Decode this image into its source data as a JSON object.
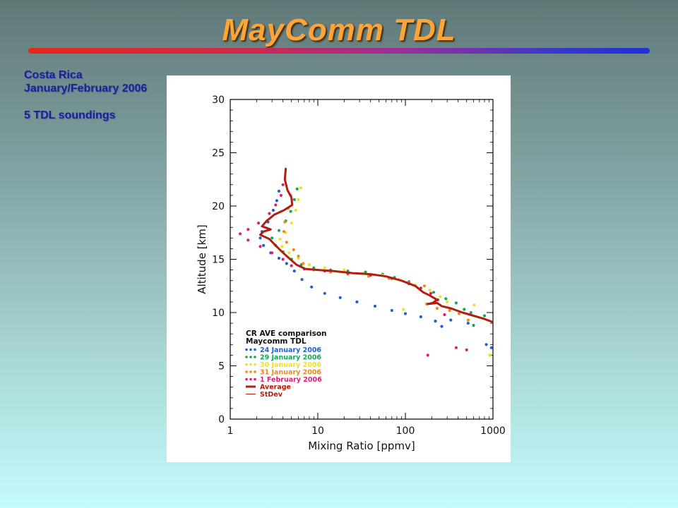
{
  "slide": {
    "title": "MayComm TDL",
    "side_lines": [
      "Costa Rica",
      "January/February 2006",
      "5 TDL soundings"
    ],
    "title_color": "#ffa436",
    "text_color": "#1b1f9e"
  },
  "chart_data": {
    "type": "scatter",
    "xlabel": "Mixing Ratio [ppmv]",
    "ylabel": "Altitude [km]",
    "x_scale": "log",
    "xlim": [
      1,
      1000
    ],
    "ylim": [
      0,
      30
    ],
    "x_ticks": [
      1,
      10,
      100,
      1000
    ],
    "y_ticks": [
      0,
      5,
      10,
      15,
      20,
      25,
      30
    ],
    "grid": false,
    "legend_position": "bottom-left",
    "legend_title": [
      "CR AVE comparison",
      "Maycomm TDL"
    ],
    "series": [
      {
        "name": "24 January 2006",
        "color": "#1f5fd0",
        "style": "dots",
        "points": [
          [
            3.6,
            21.4
          ],
          [
            3.4,
            20.5
          ],
          [
            3.1,
            19.6
          ],
          [
            2.7,
            18.5
          ],
          [
            2.3,
            17.6
          ],
          [
            2.2,
            17.0
          ],
          [
            2.4,
            16.3
          ],
          [
            2.9,
            15.6
          ],
          [
            3.6,
            15.1
          ],
          [
            4.4,
            14.6
          ],
          [
            5.4,
            13.9
          ],
          [
            6.6,
            13.1
          ],
          [
            8.5,
            12.4
          ],
          [
            12,
            11.8
          ],
          [
            18,
            11.4
          ],
          [
            28,
            11.0
          ],
          [
            45,
            10.6
          ],
          [
            70,
            10.2
          ],
          [
            100,
            9.9
          ],
          [
            150,
            9.6
          ],
          [
            220,
            9.2
          ],
          [
            260,
            8.7
          ],
          [
            330,
            9.3
          ],
          [
            520,
            9.0
          ],
          [
            840,
            7.0
          ],
          [
            960,
            6.7
          ]
        ]
      },
      {
        "name": "29 January 2006",
        "color": "#14a75a",
        "style": "dots",
        "points": [
          [
            5.8,
            21.6
          ],
          [
            5.4,
            20.6
          ],
          [
            4.9,
            19.5
          ],
          [
            4.3,
            18.6
          ],
          [
            3.6,
            17.7
          ],
          [
            3.0,
            17.0
          ],
          [
            3.3,
            16.3
          ],
          [
            4.0,
            15.7
          ],
          [
            5.0,
            15.0
          ],
          [
            6.5,
            14.5
          ],
          [
            9,
            14.2
          ],
          [
            14,
            14.0
          ],
          [
            22,
            13.9
          ],
          [
            35,
            13.8
          ],
          [
            55,
            13.6
          ],
          [
            75,
            13.3
          ],
          [
            110,
            12.9
          ],
          [
            150,
            12.3
          ],
          [
            210,
            11.9
          ],
          [
            290,
            11.3
          ],
          [
            380,
            10.9
          ],
          [
            470,
            10.3
          ],
          [
            560,
            10.0
          ],
          [
            600,
            8.8
          ],
          [
            800,
            9.7
          ]
        ]
      },
      {
        "name": "30 January 2006",
        "color": "#ebe31e",
        "style": "dots",
        "points": [
          [
            6.4,
            21.7
          ],
          [
            6.0,
            20.6
          ],
          [
            5.6,
            19.6
          ],
          [
            5.0,
            18.4
          ],
          [
            4.3,
            17.5
          ],
          [
            3.7,
            16.9
          ],
          [
            3.9,
            16.2
          ],
          [
            4.7,
            15.6
          ],
          [
            6.0,
            15.1
          ],
          [
            8,
            14.5
          ],
          [
            12,
            14.2
          ],
          [
            20,
            14.0
          ],
          [
            33,
            13.7
          ],
          [
            55,
            13.5
          ],
          [
            85,
            13.1
          ],
          [
            130,
            12.6
          ],
          [
            190,
            12.1
          ],
          [
            250,
            11.5
          ],
          [
            300,
            11.0
          ],
          [
            95,
            10.3
          ],
          [
            610,
            10.7
          ],
          [
            920,
            6.0
          ]
        ]
      },
      {
        "name": "31 January 2006",
        "color": "#ef8a17",
        "style": "dots",
        "points": [
          [
            4.9,
            21.0
          ],
          [
            4.6,
            19.8
          ],
          [
            4.2,
            18.5
          ],
          [
            4.1,
            17.6
          ],
          [
            4.4,
            16.6
          ],
          [
            5.3,
            15.9
          ],
          [
            6.0,
            15.3
          ],
          [
            6.8,
            14.6
          ],
          [
            9,
            14.0
          ],
          [
            14,
            13.8
          ],
          [
            22,
            13.6
          ],
          [
            38,
            13.4
          ],
          [
            65,
            13.2
          ],
          [
            110,
            12.8
          ],
          [
            165,
            12.5
          ],
          [
            195,
            11.8
          ],
          [
            175,
            10.8
          ],
          [
            230,
            10.4
          ],
          [
            320,
            10.2
          ],
          [
            410,
            9.9
          ],
          [
            520,
            9.3
          ]
        ]
      },
      {
        "name": "1 February 2006",
        "color": "#de1e72",
        "style": "dots",
        "points": [
          [
            4.0,
            22.0
          ],
          [
            3.8,
            21.0
          ],
          [
            3.3,
            20.1
          ],
          [
            2.8,
            19.3
          ],
          [
            2.1,
            18.4
          ],
          [
            1.6,
            17.8
          ],
          [
            1.3,
            17.4
          ],
          [
            1.6,
            16.8
          ],
          [
            2.2,
            16.2
          ],
          [
            3.0,
            15.6
          ],
          [
            4.0,
            15.0
          ],
          [
            5.0,
            14.4
          ],
          [
            7,
            14.1
          ],
          [
            12,
            13.9
          ],
          [
            22,
            13.7
          ],
          [
            40,
            13.5
          ],
          [
            70,
            13.2
          ],
          [
            110,
            12.7
          ],
          [
            150,
            12.3
          ],
          [
            195,
            11.8
          ],
          [
            235,
            11.2
          ],
          [
            280,
            9.8
          ],
          [
            380,
            6.7
          ],
          [
            180,
            6.0
          ],
          [
            500,
            6.5
          ]
        ]
      },
      {
        "name": "Average",
        "color": "#b11e10",
        "style": "line",
        "points": [
          [
            4.3,
            23.5
          ],
          [
            4.2,
            22.5
          ],
          [
            4.5,
            21.5
          ],
          [
            5.0,
            20.8
          ],
          [
            5.1,
            20.1
          ],
          [
            4.1,
            19.6
          ],
          [
            3.2,
            19.2
          ],
          [
            2.6,
            18.6
          ],
          [
            2.3,
            18.1
          ],
          [
            2.9,
            17.8
          ],
          [
            2.4,
            17.6
          ],
          [
            2.2,
            17.3
          ],
          [
            2.8,
            16.9
          ],
          [
            3.3,
            16.3
          ],
          [
            3.9,
            15.7
          ],
          [
            4.7,
            15.1
          ],
          [
            5.7,
            14.5
          ],
          [
            7.2,
            14.1
          ],
          [
            10,
            14.0
          ],
          [
            15,
            13.9
          ],
          [
            25,
            13.7
          ],
          [
            40,
            13.6
          ],
          [
            60,
            13.4
          ],
          [
            90,
            13.0
          ],
          [
            130,
            12.5
          ],
          [
            160,
            11.9
          ],
          [
            190,
            11.6
          ],
          [
            230,
            11.2
          ],
          [
            205,
            10.9
          ],
          [
            180,
            10.8
          ],
          [
            230,
            10.9
          ],
          [
            260,
            10.6
          ],
          [
            330,
            10.4
          ],
          [
            450,
            10.0
          ],
          [
            600,
            9.7
          ],
          [
            800,
            9.4
          ],
          [
            1000,
            9.1
          ]
        ]
      },
      {
        "name": "StDev",
        "color": "#b11e10",
        "style": "thin-line",
        "points": []
      }
    ]
  }
}
